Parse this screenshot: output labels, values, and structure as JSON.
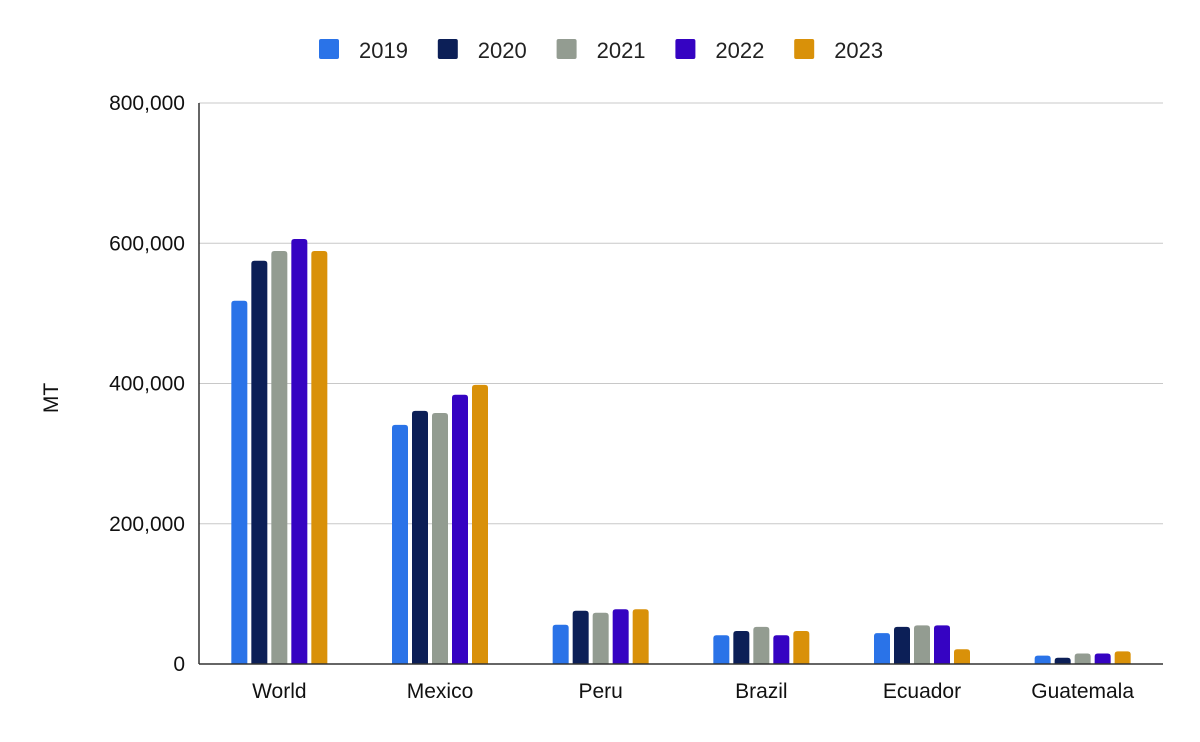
{
  "chart_data": {
    "type": "bar",
    "categories": [
      "World",
      "Mexico",
      "Peru",
      "Brazil",
      "Ecuador",
      "Guatemala"
    ],
    "series": [
      {
        "name": "2019",
        "color": "#2a73e8",
        "values": [
          518000,
          341000,
          56000,
          41000,
          44000,
          12000
        ]
      },
      {
        "name": "2020",
        "color": "#0c1f57",
        "values": [
          575000,
          361000,
          76000,
          47000,
          53000,
          9000
        ]
      },
      {
        "name": "2021",
        "color": "#939c91",
        "values": [
          589000,
          358000,
          73000,
          53000,
          55000,
          15000
        ]
      },
      {
        "name": "2022",
        "color": "#3503c2",
        "values": [
          606000,
          384000,
          78000,
          41000,
          55000,
          15000
        ]
      },
      {
        "name": "2023",
        "color": "#d99109",
        "values": [
          589000,
          398000,
          78000,
          47000,
          21000,
          18000
        ]
      }
    ],
    "title": "",
    "xlabel": "",
    "ylabel": "MT",
    "ylim": [
      0,
      800000
    ],
    "yticks": [
      0,
      200000,
      400000,
      600000,
      800000
    ],
    "ytick_labels": [
      "0",
      "200,000",
      "400,000",
      "600,000",
      "800,000"
    ],
    "grid": true,
    "legend_position": "top"
  }
}
